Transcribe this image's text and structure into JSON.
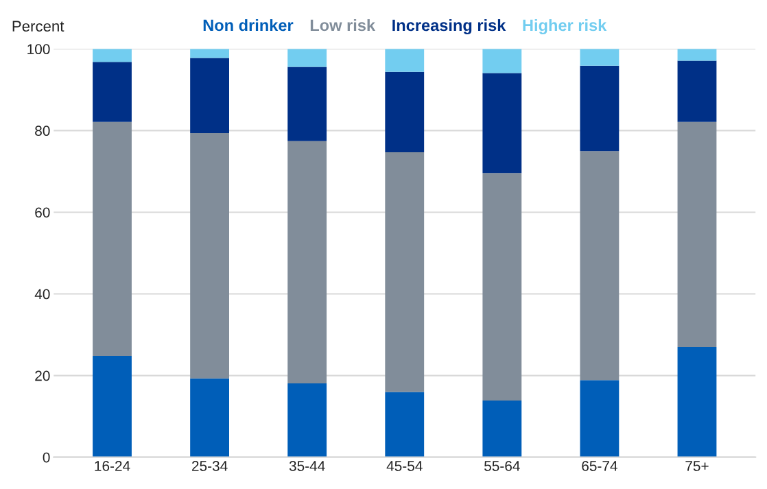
{
  "chart_data": {
    "type": "bar",
    "ylabel": "Percent",
    "stacked": true,
    "categories": [
      "16-24",
      "25-34",
      "35-44",
      "45-54",
      "55-64",
      "65-74",
      "75+"
    ],
    "series": [
      {
        "name": "Non drinker",
        "color": "#005eb8",
        "values": [
          24.8,
          19.3,
          18.1,
          16.0,
          13.9,
          18.9,
          27.0
        ]
      },
      {
        "name": "Low risk",
        "color": "#818d9a",
        "values": [
          57.3,
          60.1,
          59.3,
          58.7,
          55.7,
          56.1,
          55.1
        ]
      },
      {
        "name": "Increasing risk",
        "color": "#003087",
        "values": [
          14.7,
          18.4,
          18.2,
          19.7,
          24.5,
          20.9,
          15.0
        ]
      },
      {
        "name": "Higher risk",
        "color": "#72cdf0",
        "values": [
          3.2,
          2.2,
          4.4,
          5.6,
          5.9,
          4.1,
          2.9
        ]
      }
    ],
    "ylim": [
      0,
      100
    ],
    "yticks": [
      0,
      20,
      40,
      60,
      80,
      100
    ],
    "grid": "y",
    "legend": "top"
  }
}
